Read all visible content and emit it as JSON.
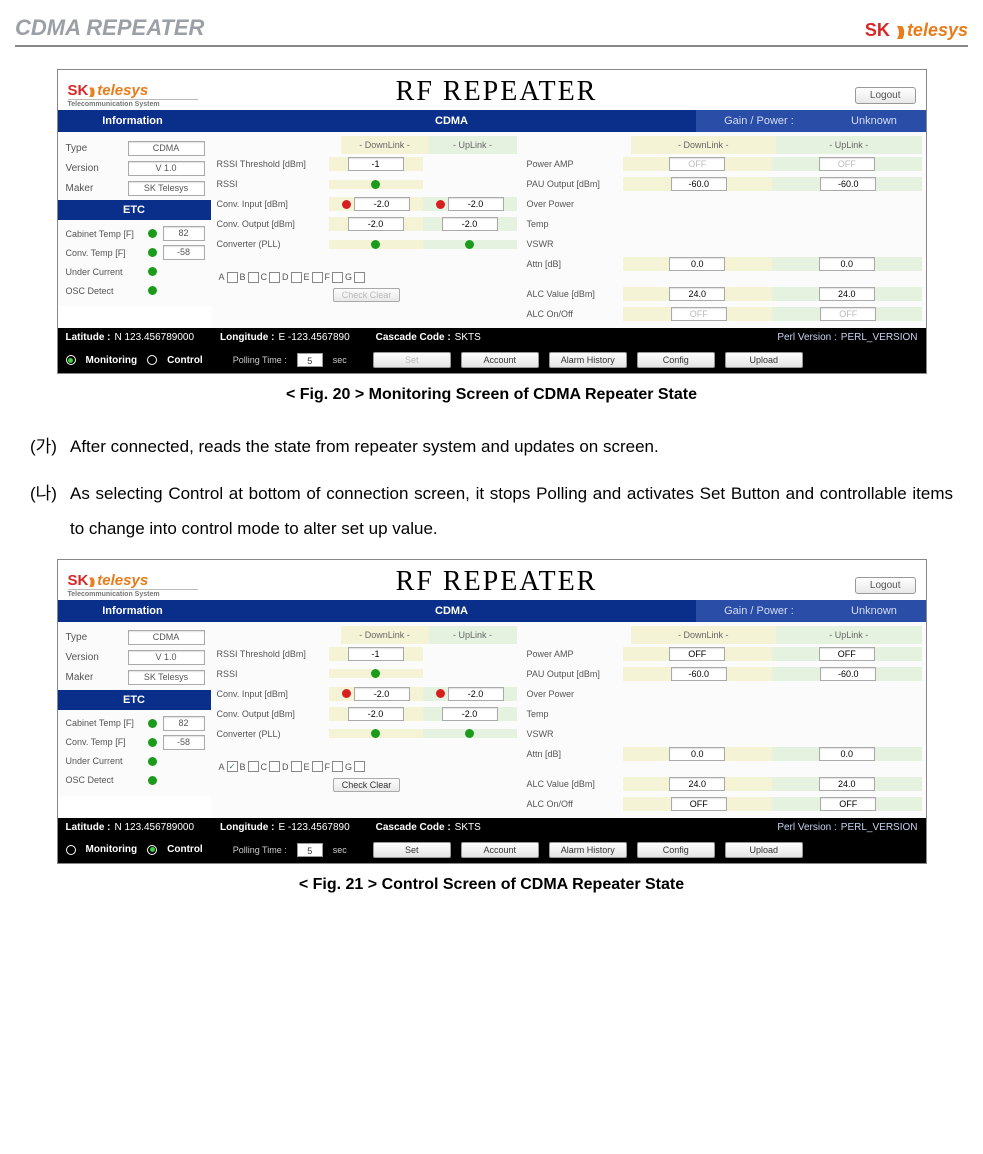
{
  "page": {
    "title": "CDMA REPEATER",
    "logo_main": "SK",
    "logo_sub": "telesys"
  },
  "captions": {
    "fig20": "< Fig. 20 > Monitoring Screen of CDMA Repeater State",
    "fig21": "< Fig. 21 > Control Screen of CDMA Repeater State"
  },
  "paragraphs": {
    "p1_bullet": "(가)",
    "p1": "After connected, reads the state from repeater system and updates on screen.",
    "p2_bullet": "(나)",
    "p2": "As selecting Control at bottom of connection screen, it stops Polling and activates Set Button and controllable items to change into control mode to alter set up value."
  },
  "shot_common": {
    "logo_sk": "SK",
    "logo_te": "telesys",
    "logo_sub": "Telecommunication System",
    "title": "RF  REPEATER",
    "logout": "Logout",
    "bar_info": "Information",
    "bar_cdma": "CDMA",
    "bar_gp_label": "Gain / Power :",
    "bar_gp_val": "Unknown",
    "info_type_l": "Type",
    "info_type_v": "CDMA",
    "info_ver_l": "Version",
    "info_ver_v": "V 1.0",
    "info_maker_l": "Maker",
    "info_maker_v": "SK Telesys",
    "etc_title": "ETC",
    "etc_cab_l": "Cabinet Temp [F]",
    "etc_cab_v": "82",
    "etc_conv_l": "Conv. Temp [F]",
    "etc_conv_v": "-58",
    "etc_uc_l": "Under Current",
    "etc_osc_l": "OSC Detect",
    "dl_label": "- DownLink -",
    "ul_label": "- UpLink -",
    "rssi_th": "RSSI Threshold [dBm]",
    "rssi_th_v": "-1",
    "rssi": "RSSI",
    "conv_in": "Conv. Input [dBm]",
    "conv_in_dl": "-2.0",
    "conv_in_ul": "-2.0",
    "conv_out": "Conv. Output [dBm]",
    "conv_out_dl": "-2.0",
    "conv_out_ul": "-2.0",
    "conv_pll": "Converter (PLL)",
    "chk_labels": [
      "A",
      "B",
      "C",
      "D",
      "E",
      "F",
      "G"
    ],
    "check_clear": "Check Clear",
    "power_amp": "Power AMP",
    "pau_out": "PAU Output [dBm]",
    "pau_dl": "-60.0",
    "pau_ul": "-60.0",
    "over_power": "Over Power",
    "temp": "Temp",
    "vswr": "VSWR",
    "attn": "Attn [dB]",
    "attn_dl": "0.0",
    "attn_ul": "0.0",
    "alc_val": "ALC Value [dBm]",
    "alc_dl": "24.0",
    "alc_ul": "24.0",
    "alc_on": "ALC On/Off",
    "alc_on_v": "OFF",
    "lat_l": "Latitude :",
    "lat_v": "N 123.456789000",
    "lon_l": "Longitude :",
    "lon_v": "E -123.4567890",
    "casc_l": "Cascade Code :",
    "casc_v": "SKTS",
    "perl_l": "Perl Version :",
    "perl_v": "PERL_VERSION",
    "monitoring": "Monitoring",
    "control": "Control",
    "polling": "Polling Time :",
    "polling_v": "5",
    "sec": "sec",
    "btn_set": "Set",
    "btn_account": "Account",
    "btn_alarm": "Alarm History",
    "btn_config": "Config",
    "btn_upload": "Upload"
  },
  "shot1": {
    "pa_off_dis": true,
    "alc_off_dis": true,
    "monitoring_on": true,
    "control_on": false,
    "set_disabled": true,
    "check_a": false,
    "check_clear_disabled": true
  },
  "shot2": {
    "pa_off_dis": false,
    "alc_off_dis": false,
    "monitoring_on": false,
    "control_on": true,
    "set_disabled": false,
    "check_a": true,
    "check_clear_disabled": false
  }
}
